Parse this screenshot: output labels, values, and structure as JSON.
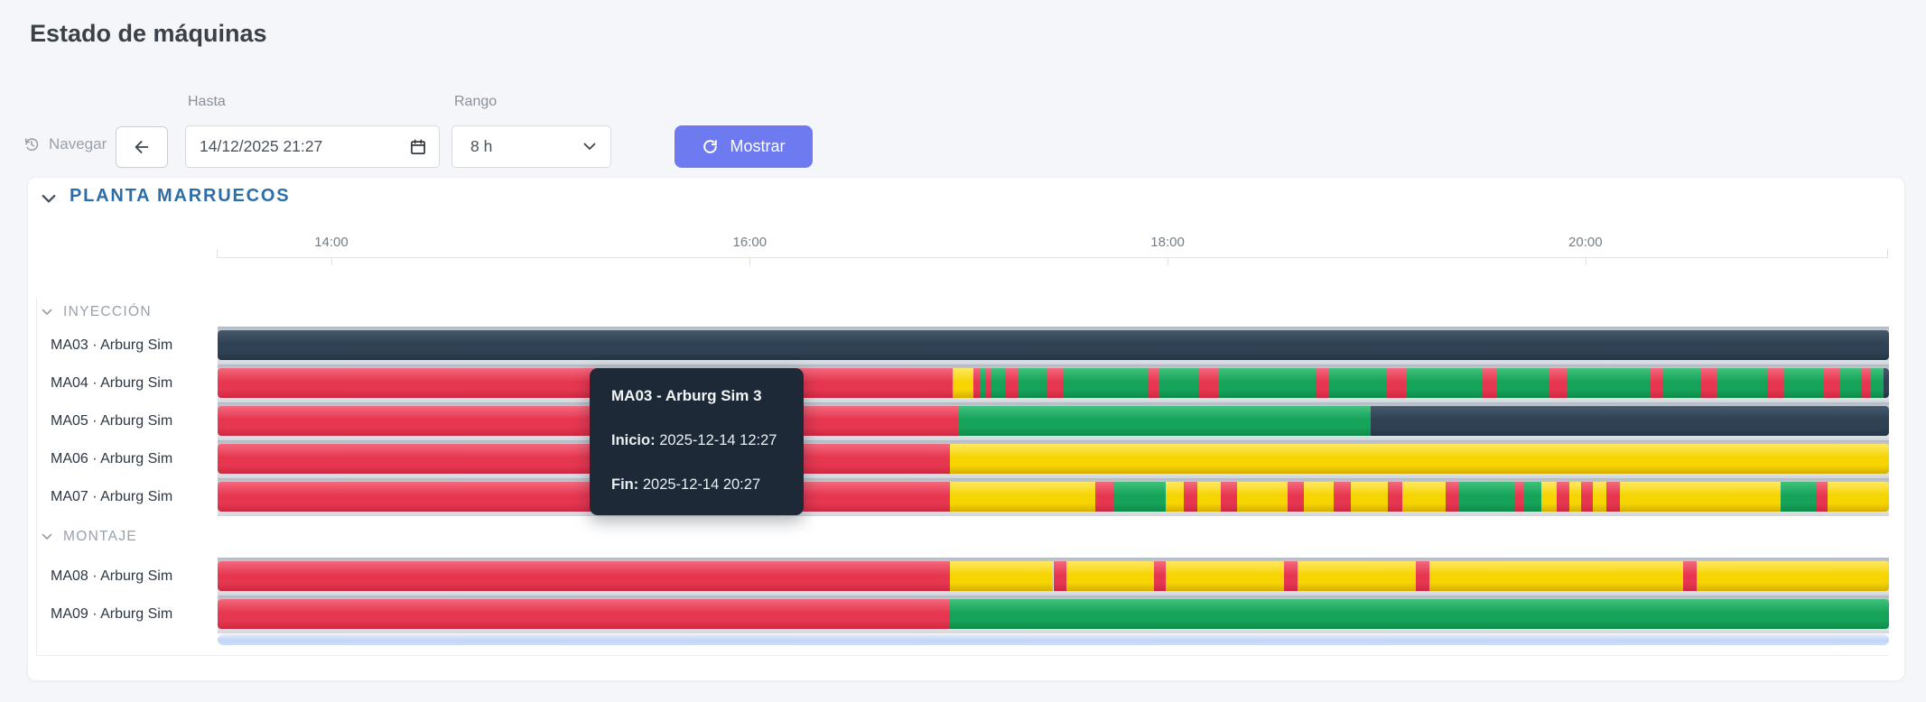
{
  "page": {
    "title": "Estado de máquinas"
  },
  "toolbar": {
    "navigate_label": "Navegar",
    "hasta_label": "Hasta",
    "hasta_value": "14/12/2025 21:27",
    "rango_label": "Rango",
    "rango_value": "8 h",
    "mostrar_label": "Mostrar",
    "accent_color": "#6e7af0"
  },
  "section": {
    "title": "PLANTA MARRUECOS",
    "title_color": "#2d6da8"
  },
  "tooltip": {
    "title": "MA03 - Arburg Sim 3",
    "inicio_label": "Inicio:",
    "inicio_value": "2025-12-14 12:27",
    "fin_label": "Fin:",
    "fin_value": "2025-12-14 20:27"
  },
  "chart_data": {
    "type": "timeline",
    "window": {
      "hasta": "14/12/2025 21:27",
      "rango": "8 h"
    },
    "axis_ticks": [
      {
        "label": "14:00",
        "f": 0.0686
      },
      {
        "label": "16:00",
        "f": 0.3189
      },
      {
        "label": "18:00",
        "f": 0.5689
      },
      {
        "label": "20:00",
        "f": 0.8189
      }
    ],
    "state_colors": {
      "red": {
        "top": "#f3697d",
        "mid": "#e73750",
        "bottom": "#ce2843"
      },
      "green": {
        "top": "#41c27d",
        "mid": "#16a35a",
        "bottom": "#0e8a4a"
      },
      "yellow": {
        "top": "#ffe863",
        "mid": "#f6d502",
        "bottom": "#d6ae00"
      },
      "dark": {
        "top": "#47596c",
        "mid": "#2f4254",
        "bottom": "#243443"
      }
    },
    "groups": [
      {
        "name": "INYECCIÓN",
        "machines": [
          {
            "label": "MA03 · Arburg Sim",
            "segments": [
              [
                0,
                1,
                "dark"
              ]
            ]
          },
          {
            "label": "MA04 · Arburg Sim",
            "segments": [
              [
                0,
                0.44,
                "red"
              ],
              [
                0.44,
                0.452,
                "yellow"
              ],
              [
                0.452,
                0.456,
                "red"
              ],
              [
                0.456,
                0.46,
                "green"
              ],
              [
                0.46,
                0.463,
                "red"
              ],
              [
                0.463,
                0.471,
                "green"
              ],
              [
                0.471,
                0.479,
                "red"
              ],
              [
                0.479,
                0.496,
                "green"
              ],
              [
                0.496,
                0.506,
                "red"
              ],
              [
                0.506,
                0.557,
                "green"
              ],
              [
                0.557,
                0.563,
                "red"
              ],
              [
                0.563,
                0.587,
                "green"
              ],
              [
                0.587,
                0.599,
                "red"
              ],
              [
                0.599,
                0.657,
                "green"
              ],
              [
                0.657,
                0.665,
                "red"
              ],
              [
                0.665,
                0.699,
                "green"
              ],
              [
                0.699,
                0.711,
                "red"
              ],
              [
                0.711,
                0.757,
                "green"
              ],
              [
                0.757,
                0.765,
                "red"
              ],
              [
                0.765,
                0.797,
                "green"
              ],
              [
                0.797,
                0.807,
                "red"
              ],
              [
                0.807,
                0.857,
                "green"
              ],
              [
                0.857,
                0.865,
                "red"
              ],
              [
                0.865,
                0.887,
                "green"
              ],
              [
                0.887,
                0.897,
                "red"
              ],
              [
                0.897,
                0.927,
                "green"
              ],
              [
                0.927,
                0.937,
                "red"
              ],
              [
                0.937,
                0.961,
                "green"
              ],
              [
                0.961,
                0.971,
                "red"
              ],
              [
                0.971,
                0.983,
                "green"
              ],
              [
                0.983,
                0.989,
                "red"
              ],
              [
                0.989,
                0.997,
                "green"
              ],
              [
                0.997,
                1,
                "dark"
              ]
            ]
          },
          {
            "label": "MA05 · Arburg Sim",
            "segments": [
              [
                0,
                0.443,
                "red"
              ],
              [
                0.443,
                0.69,
                "green"
              ],
              [
                0.69,
                1,
                "dark"
              ]
            ]
          },
          {
            "label": "MA06 · Arburg Sim",
            "segments": [
              [
                0,
                0.438,
                "red"
              ],
              [
                0.438,
                1,
                "yellow"
              ]
            ]
          },
          {
            "label": "MA07 · Arburg Sim",
            "segments": [
              [
                0,
                0.438,
                "red"
              ],
              [
                0.438,
                0.525,
                "yellow"
              ],
              [
                0.525,
                0.536,
                "red"
              ],
              [
                0.536,
                0.567,
                "green"
              ],
              [
                0.567,
                0.578,
                "yellow"
              ],
              [
                0.578,
                0.586,
                "red"
              ],
              [
                0.586,
                0.6,
                "yellow"
              ],
              [
                0.6,
                0.61,
                "red"
              ],
              [
                0.61,
                0.64,
                "yellow"
              ],
              [
                0.64,
                0.65,
                "red"
              ],
              [
                0.65,
                0.668,
                "yellow"
              ],
              [
                0.668,
                0.678,
                "red"
              ],
              [
                0.678,
                0.7,
                "yellow"
              ],
              [
                0.7,
                0.709,
                "red"
              ],
              [
                0.709,
                0.735,
                "yellow"
              ],
              [
                0.735,
                0.743,
                "red"
              ],
              [
                0.743,
                0.776,
                "green"
              ],
              [
                0.776,
                0.781,
                "red"
              ],
              [
                0.781,
                0.792,
                "green"
              ],
              [
                0.792,
                0.801,
                "yellow"
              ],
              [
                0.801,
                0.809,
                "red"
              ],
              [
                0.809,
                0.816,
                "yellow"
              ],
              [
                0.816,
                0.823,
                "red"
              ],
              [
                0.823,
                0.831,
                "yellow"
              ],
              [
                0.831,
                0.839,
                "red"
              ],
              [
                0.839,
                0.935,
                "yellow"
              ],
              [
                0.935,
                0.956,
                "green"
              ],
              [
                0.956,
                0.963,
                "red"
              ],
              [
                0.963,
                1,
                "yellow"
              ]
            ]
          }
        ]
      },
      {
        "name": "MONTAJE",
        "machines": [
          {
            "label": "MA08 · Arburg Sim",
            "segments": [
              [
                0,
                0.438,
                "red"
              ],
              [
                0.438,
                0.5,
                "yellow"
              ],
              [
                0.5,
                0.508,
                "red"
              ],
              [
                0.508,
                0.56,
                "yellow"
              ],
              [
                0.56,
                0.567,
                "red"
              ],
              [
                0.567,
                0.638,
                "yellow"
              ],
              [
                0.638,
                0.646,
                "red"
              ],
              [
                0.646,
                0.717,
                "yellow"
              ],
              [
                0.717,
                0.725,
                "red"
              ],
              [
                0.725,
                0.877,
                "yellow"
              ],
              [
                0.877,
                0.885,
                "red"
              ],
              [
                0.885,
                1,
                "yellow"
              ]
            ]
          },
          {
            "label": "MA09 · Arburg Sim",
            "segments": [
              [
                0,
                0.438,
                "red"
              ],
              [
                0.438,
                1,
                "green"
              ]
            ]
          }
        ]
      }
    ]
  }
}
